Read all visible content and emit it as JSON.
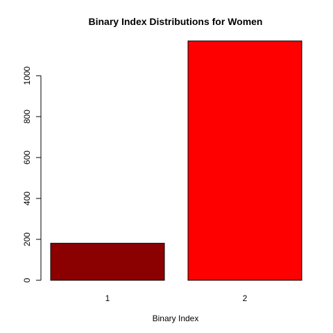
{
  "chart_data": {
    "type": "bar",
    "title": "Binary Index Distributions for Women",
    "xlabel": "Binary Index",
    "ylabel": "",
    "categories": [
      "1",
      "2"
    ],
    "values": [
      181,
      1170
    ],
    "colors": [
      "#8b0000",
      "#ff0000"
    ],
    "ylim": [
      0,
      1170
    ],
    "yticks": [
      0,
      200,
      400,
      600,
      800,
      1000
    ],
    "grid": false
  }
}
